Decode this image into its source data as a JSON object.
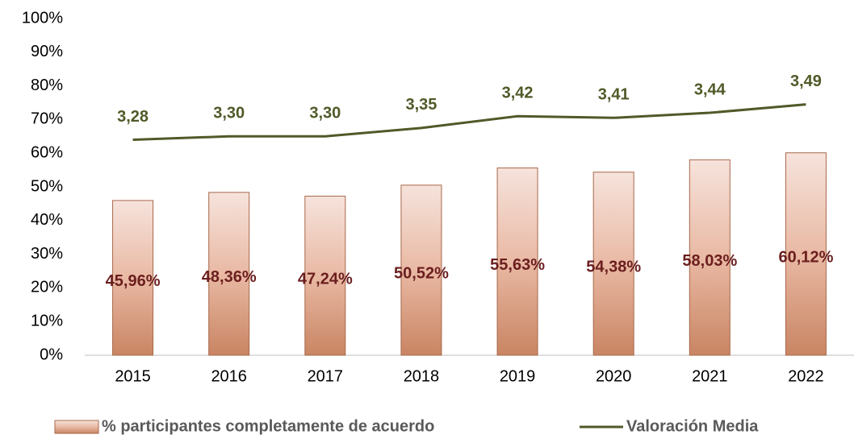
{
  "chart_data": {
    "type": "bar",
    "categories": [
      "2015",
      "2016",
      "2017",
      "2018",
      "2019",
      "2020",
      "2021",
      "2022"
    ],
    "series": [
      {
        "name": "% participantes completamente de acuerdo",
        "type": "bar",
        "color": "#d9a58a",
        "values": [
          45.96,
          48.36,
          47.24,
          50.52,
          55.63,
          54.38,
          58.03,
          60.12
        ],
        "value_labels": [
          "45,96%",
          "48,36%",
          "47,24%",
          "50,52%",
          "55,63%",
          "54,38%",
          "58,03%",
          "60,12%"
        ]
      },
      {
        "name": "Valoración Media",
        "type": "line",
        "axis": "y2",
        "color": "#4f5a28",
        "values": [
          3.28,
          3.3,
          3.3,
          3.35,
          3.42,
          3.41,
          3.44,
          3.49
        ],
        "value_labels": [
          "3,28",
          "3,30",
          "3,30",
          "3,35",
          "3,42",
          "3,41",
          "3,44",
          "3,49"
        ]
      }
    ],
    "ylim": [
      0,
      100
    ],
    "yticks": [
      {
        "value": 0,
        "label": "0%"
      },
      {
        "value": 10,
        "label": "10%"
      },
      {
        "value": 20,
        "label": "20%"
      },
      {
        "value": 30,
        "label": "30%"
      },
      {
        "value": 40,
        "label": "40%"
      },
      {
        "value": 50,
        "label": "50%"
      },
      {
        "value": 60,
        "label": "60%"
      },
      {
        "value": 70,
        "label": "70%"
      },
      {
        "value": 80,
        "label": "80%"
      },
      {
        "value": 90,
        "label": "90%"
      },
      {
        "value": 100,
        "label": "100%"
      }
    ],
    "y2lim": [
      2,
      4
    ],
    "legend": "bottom"
  }
}
